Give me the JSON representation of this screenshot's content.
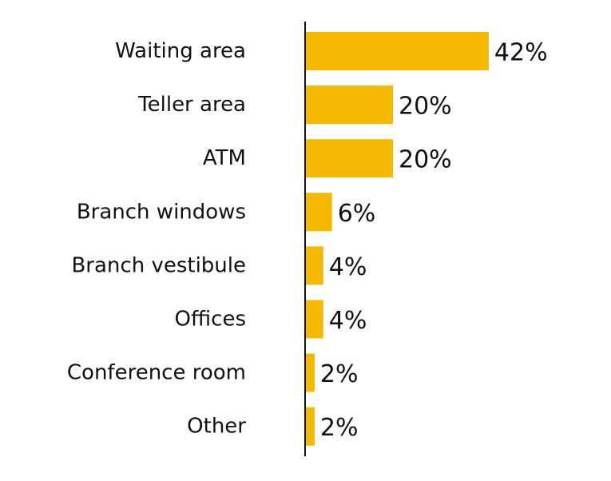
{
  "chart_data": {
    "type": "bar",
    "orientation": "horizontal",
    "categories": [
      "Waiting area",
      "Teller area",
      "ATM",
      "Branch windows",
      "Branch vestibule",
      "Offices",
      "Conference room",
      "Other"
    ],
    "values": [
      42,
      20,
      20,
      6,
      4,
      4,
      2,
      2
    ],
    "value_labels": [
      "42%",
      "20%",
      "20%",
      "6%",
      "4%",
      "4%",
      "2%",
      "2%"
    ],
    "color": "#f5b800"
  }
}
